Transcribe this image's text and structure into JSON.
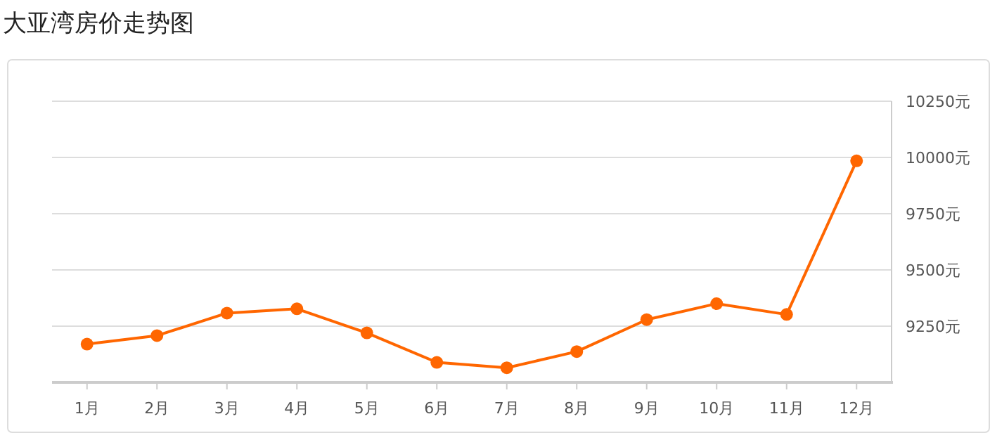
{
  "chart_data": {
    "type": "line",
    "title": "大亚湾房价走势图",
    "categories": [
      "1月",
      "2月",
      "3月",
      "4月",
      "5月",
      "6月",
      "7月",
      "8月",
      "9月",
      "10月",
      "11月",
      "12月"
    ],
    "series": [
      {
        "color": "#ff6600",
        "values": [
          9170,
          9208,
          9308,
          9327,
          9220,
          9089,
          9065,
          9137,
          9279,
          9350,
          9302,
          9985
        ]
      }
    ],
    "ylim": [
      9000,
      10250
    ],
    "yticks": [
      {
        "value": 9250,
        "label": "9250元"
      },
      {
        "value": 9500,
        "label": "9500元"
      },
      {
        "value": 9750,
        "label": "9750元"
      },
      {
        "value": 10000,
        "label": "10000元"
      },
      {
        "value": 10250,
        "label": "10250元"
      }
    ],
    "grid": "y",
    "marker": "circle",
    "line_style": "solid"
  }
}
